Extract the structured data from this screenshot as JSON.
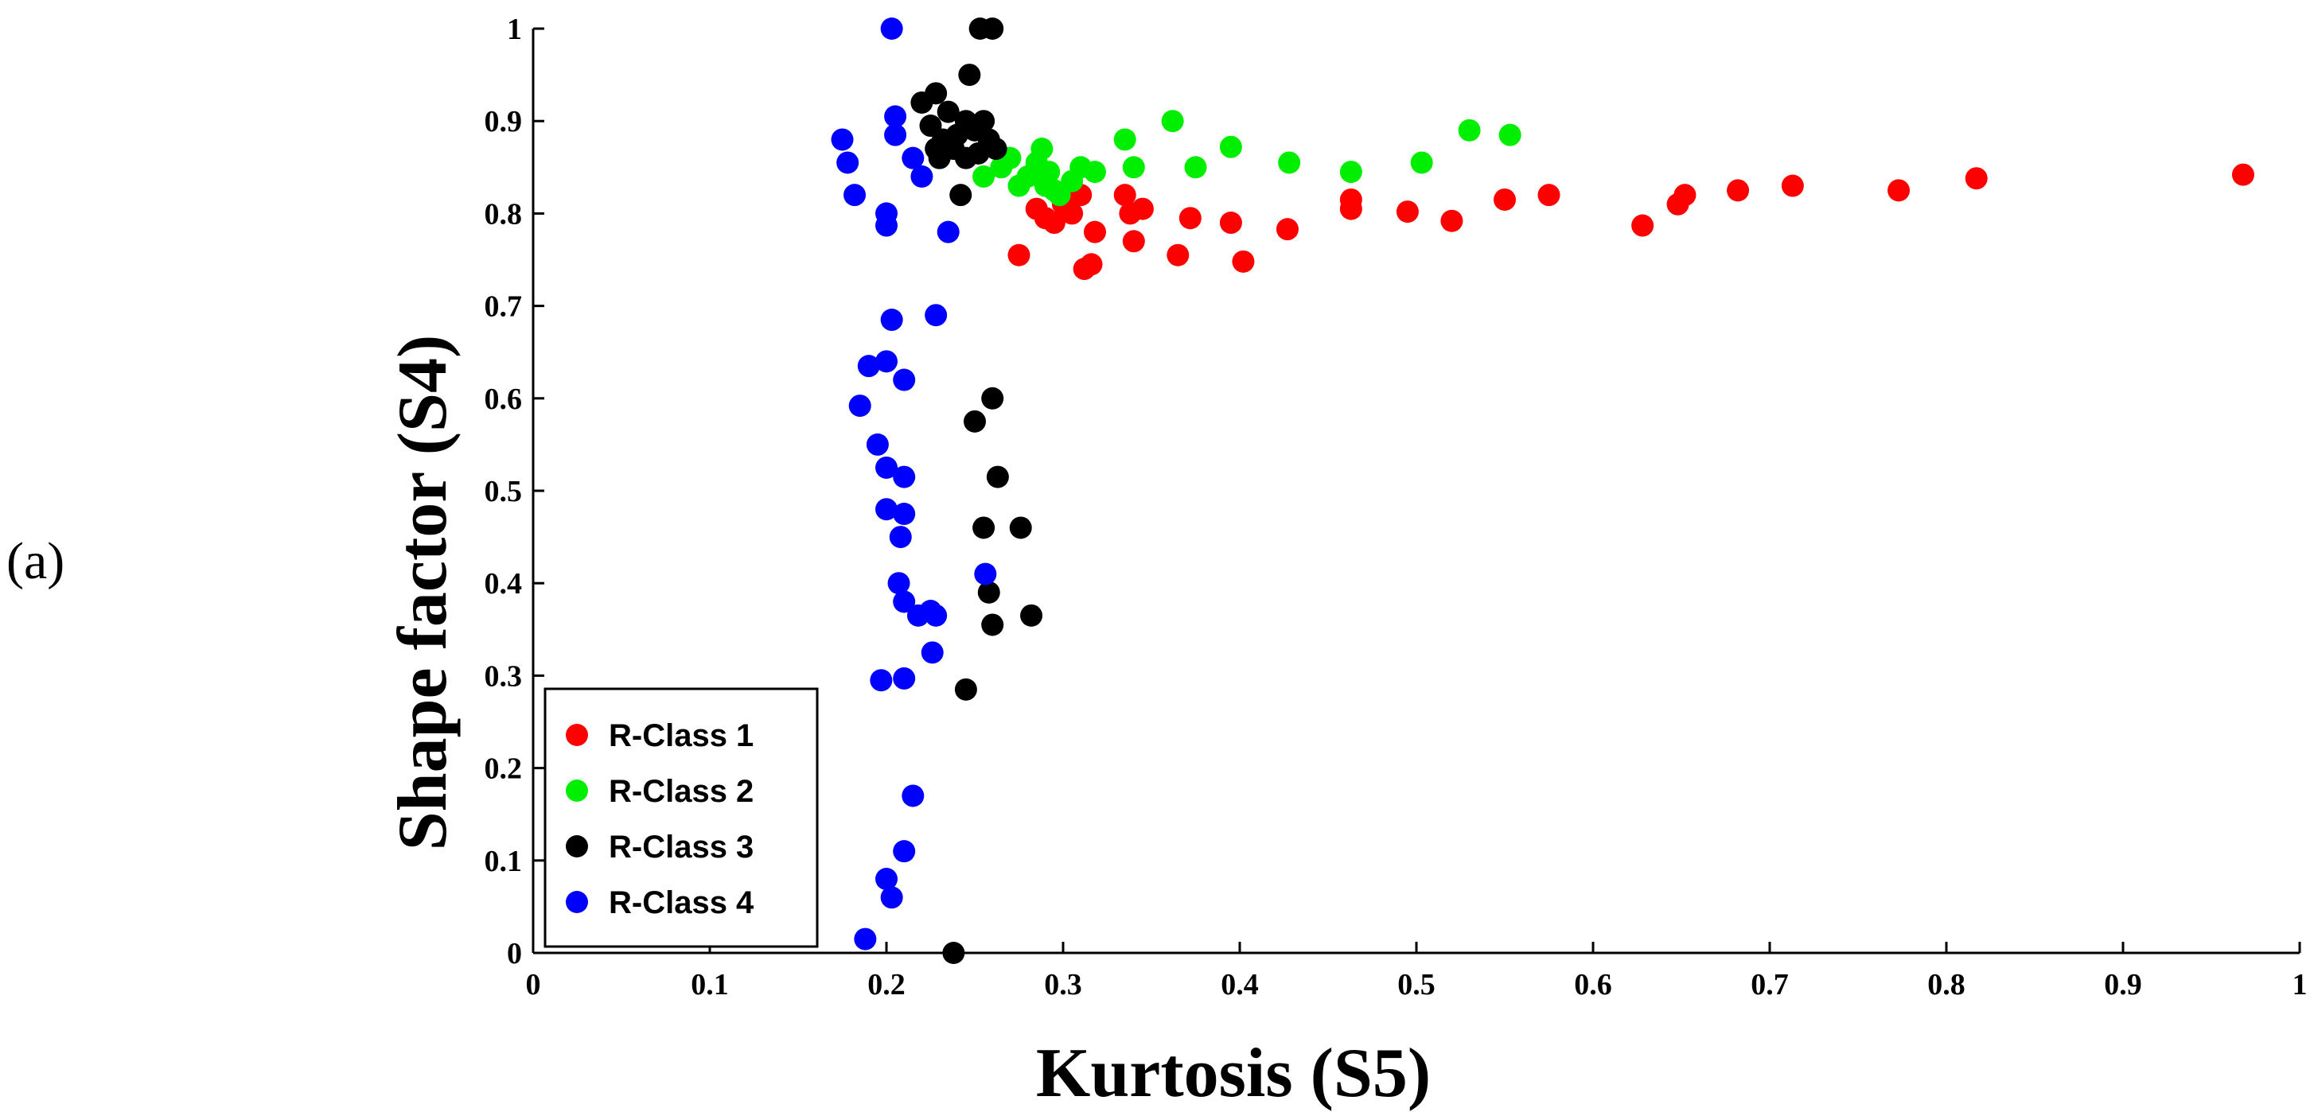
{
  "panel_label": "(a)",
  "chart_data": {
    "type": "scatter",
    "xlabel": "Kurtosis (S5)",
    "ylabel": "Shape factor (S4)",
    "xlim": [
      0,
      1
    ],
    "ylim": [
      0,
      1
    ],
    "xticks": [
      "0",
      "0.1",
      "0.2",
      "0.3",
      "0.4",
      "0.5",
      "0.6",
      "0.7",
      "0.8",
      "0.9",
      "1"
    ],
    "yticks": [
      "0",
      "0.1",
      "0.2",
      "0.3",
      "0.4",
      "0.5",
      "0.6",
      "0.7",
      "0.8",
      "0.9",
      "1"
    ],
    "grid": false,
    "legend_position": "bottom-left",
    "series": [
      {
        "name": "R-Class 1",
        "color": "#ff0000",
        "points": [
          [
            0.285,
            0.805
          ],
          [
            0.29,
            0.795
          ],
          [
            0.295,
            0.79
          ],
          [
            0.3,
            0.81
          ],
          [
            0.305,
            0.8
          ],
          [
            0.31,
            0.82
          ],
          [
            0.275,
            0.755
          ],
          [
            0.312,
            0.74
          ],
          [
            0.316,
            0.745
          ],
          [
            0.318,
            0.78
          ],
          [
            0.335,
            0.82
          ],
          [
            0.338,
            0.8
          ],
          [
            0.34,
            0.77
          ],
          [
            0.345,
            0.805
          ],
          [
            0.365,
            0.755
          ],
          [
            0.372,
            0.795
          ],
          [
            0.395,
            0.79
          ],
          [
            0.402,
            0.748
          ],
          [
            0.427,
            0.783
          ],
          [
            0.463,
            0.815
          ],
          [
            0.463,
            0.805
          ],
          [
            0.495,
            0.802
          ],
          [
            0.52,
            0.792
          ],
          [
            0.55,
            0.815
          ],
          [
            0.575,
            0.82
          ],
          [
            0.628,
            0.787
          ],
          [
            0.648,
            0.81
          ],
          [
            0.652,
            0.82
          ],
          [
            0.682,
            0.825
          ],
          [
            0.713,
            0.83
          ],
          [
            0.773,
            0.825
          ],
          [
            0.817,
            0.838
          ],
          [
            0.968,
            0.842
          ]
        ]
      },
      {
        "name": "R-Class 2",
        "color": "#00ee00",
        "points": [
          [
            0.255,
            0.84
          ],
          [
            0.265,
            0.85
          ],
          [
            0.27,
            0.86
          ],
          [
            0.275,
            0.83
          ],
          [
            0.28,
            0.84
          ],
          [
            0.285,
            0.855
          ],
          [
            0.288,
            0.87
          ],
          [
            0.29,
            0.83
          ],
          [
            0.292,
            0.845
          ],
          [
            0.295,
            0.825
          ],
          [
            0.298,
            0.82
          ],
          [
            0.305,
            0.835
          ],
          [
            0.31,
            0.85
          ],
          [
            0.318,
            0.845
          ],
          [
            0.335,
            0.88
          ],
          [
            0.34,
            0.85
          ],
          [
            0.362,
            0.9
          ],
          [
            0.375,
            0.85
          ],
          [
            0.395,
            0.872
          ],
          [
            0.428,
            0.855
          ],
          [
            0.463,
            0.845
          ],
          [
            0.503,
            0.855
          ],
          [
            0.53,
            0.89
          ],
          [
            0.553,
            0.885
          ]
        ]
      },
      {
        "name": "R-Class 3",
        "color": "#000000",
        "points": [
          [
            0.253,
            1.0
          ],
          [
            0.26,
            1.0
          ],
          [
            0.247,
            0.95
          ],
          [
            0.22,
            0.92
          ],
          [
            0.228,
            0.93
          ],
          [
            0.235,
            0.91
          ],
          [
            0.225,
            0.895
          ],
          [
            0.232,
            0.88
          ],
          [
            0.24,
            0.885
          ],
          [
            0.245,
            0.9
          ],
          [
            0.25,
            0.89
          ],
          [
            0.255,
            0.9
          ],
          [
            0.258,
            0.88
          ],
          [
            0.262,
            0.87
          ],
          [
            0.23,
            0.86
          ],
          [
            0.238,
            0.87
          ],
          [
            0.245,
            0.86
          ],
          [
            0.252,
            0.865
          ],
          [
            0.228,
            0.87
          ],
          [
            0.242,
            0.82
          ],
          [
            0.26,
            0.6
          ],
          [
            0.25,
            0.575
          ],
          [
            0.263,
            0.515
          ],
          [
            0.255,
            0.46
          ],
          [
            0.276,
            0.46
          ],
          [
            0.258,
            0.39
          ],
          [
            0.26,
            0.355
          ],
          [
            0.282,
            0.365
          ],
          [
            0.245,
            0.285
          ],
          [
            0.238,
            0.0
          ]
        ]
      },
      {
        "name": "R-Class 4",
        "color": "#0000ff",
        "points": [
          [
            0.203,
            1.0
          ],
          [
            0.205,
            0.905
          ],
          [
            0.205,
            0.885
          ],
          [
            0.215,
            0.86
          ],
          [
            0.22,
            0.84
          ],
          [
            0.175,
            0.88
          ],
          [
            0.178,
            0.855
          ],
          [
            0.182,
            0.82
          ],
          [
            0.2,
            0.8
          ],
          [
            0.2,
            0.787
          ],
          [
            0.235,
            0.78
          ],
          [
            0.203,
            0.685
          ],
          [
            0.228,
            0.69
          ],
          [
            0.19,
            0.635
          ],
          [
            0.2,
            0.64
          ],
          [
            0.21,
            0.62
          ],
          [
            0.185,
            0.592
          ],
          [
            0.195,
            0.55
          ],
          [
            0.2,
            0.525
          ],
          [
            0.21,
            0.515
          ],
          [
            0.2,
            0.48
          ],
          [
            0.21,
            0.475
          ],
          [
            0.208,
            0.45
          ],
          [
            0.256,
            0.41
          ],
          [
            0.207,
            0.4
          ],
          [
            0.21,
            0.38
          ],
          [
            0.218,
            0.365
          ],
          [
            0.225,
            0.37
          ],
          [
            0.228,
            0.365
          ],
          [
            0.226,
            0.325
          ],
          [
            0.197,
            0.295
          ],
          [
            0.21,
            0.297
          ],
          [
            0.215,
            0.17
          ],
          [
            0.21,
            0.11
          ],
          [
            0.2,
            0.08
          ],
          [
            0.203,
            0.06
          ],
          [
            0.188,
            0.015
          ]
        ]
      }
    ]
  }
}
